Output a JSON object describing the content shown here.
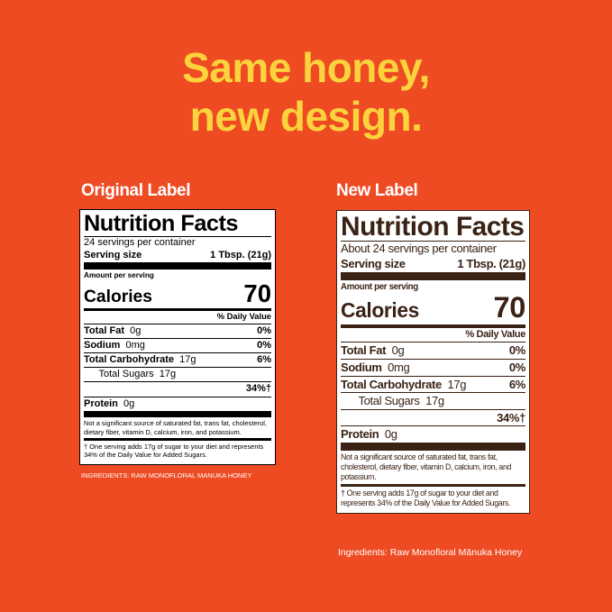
{
  "headline": [
    "Same honey,",
    "new design."
  ],
  "labels": [
    {
      "caption": "Original Label",
      "title": "Nutrition Facts",
      "servings": "24 servings per container",
      "serving_size_label": "Serving size",
      "serving_size": "1 Tbsp. (21g)",
      "amount_per_serving": "Amount per serving",
      "calories_label": "Calories",
      "calories": "70",
      "daily_value_header": "% Daily Value",
      "nutrients": [
        {
          "name": "Total Fat",
          "amount": "0g",
          "dv": "0%"
        },
        {
          "name": "Sodium",
          "amount": "0mg",
          "dv": "0%"
        },
        {
          "name": "Total Carbohydrate",
          "amount": "17g",
          "dv": "6%"
        },
        {
          "name": "Total Sugars",
          "amount": "17g"
        }
      ],
      "added_sugars_dv": "34%†",
      "protein": {
        "name": "Protein",
        "amount": "0g"
      },
      "footnote_1": "Not a significant source of saturated fat, trans fat, cholesterol, dietary fiber, vitamin D, calcium, iron, and potassium.",
      "footnote_2": "† One serving adds 17g of sugar to your diet and represents 34% of the Daily Value for Added Sugars.",
      "ingredients": "INGREDIENTS: RAW MONOFLORAL MANUKA HONEY"
    },
    {
      "caption": "New Label",
      "title": "Nutrition Facts",
      "servings": "About 24 servings per container",
      "serving_size_label": "Serving size",
      "serving_size": "1 Tbsp. (21g)",
      "amount_per_serving": "Amount per serving",
      "calories_label": "Calories",
      "calories": "70",
      "daily_value_header": "% Daily Value",
      "nutrients": [
        {
          "name": "Total Fat",
          "amount": "0g",
          "dv": "0%"
        },
        {
          "name": "Sodium",
          "amount": "0mg",
          "dv": "0%"
        },
        {
          "name": "Total Carbohydrate",
          "amount": "17g",
          "dv": "6%"
        },
        {
          "name": "Total Sugars",
          "amount": "17g"
        }
      ],
      "added_sugars_dv": "34%†",
      "protein": {
        "name": "Protein",
        "amount": "0g"
      },
      "footnote_1": "Not a significant source of saturated fat, trans fat, cholesterol, dietary fiber, vitamin D, calcium, iron, and potassium.",
      "footnote_2": "† One serving adds 17g of sugar to your diet and represents 34% of the Daily Value for Added Sugars.",
      "ingredients": "Ingredients: Raw Monofloral Mānuka Honey"
    }
  ]
}
